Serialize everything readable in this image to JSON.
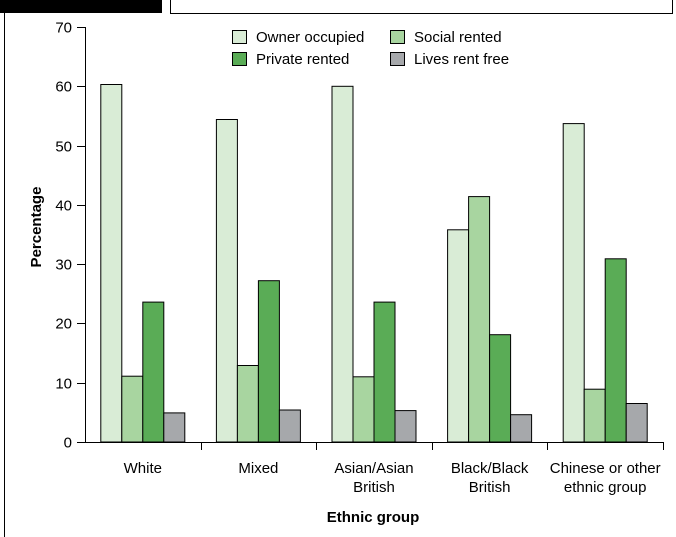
{
  "chart_data": {
    "type": "bar",
    "categories": [
      [
        "White"
      ],
      [
        "Mixed"
      ],
      [
        "Asian/Asian",
        "British"
      ],
      [
        "Black/Black",
        "British"
      ],
      [
        "Chinese or other",
        "ethnic group"
      ]
    ],
    "series": [
      {
        "name": "Owner occupied",
        "color": "#d9ecd6",
        "values": [
          60.3,
          54.4,
          60.0,
          35.8,
          53.7
        ]
      },
      {
        "name": "Social rented",
        "color": "#a8d5a0",
        "values": [
          11.1,
          12.9,
          11.0,
          41.4,
          8.9
        ]
      },
      {
        "name": "Private rented",
        "color": "#5aac56",
        "values": [
          23.6,
          27.2,
          23.6,
          18.1,
          30.9
        ]
      },
      {
        "name": "Lives rent free",
        "color": "#a6a8ab",
        "values": [
          4.9,
          5.4,
          5.3,
          4.6,
          6.5
        ]
      }
    ],
    "xlabel": "Ethnic group",
    "ylabel": "Percentage",
    "ylim": [
      0,
      70
    ],
    "yticks": [
      0,
      10,
      20,
      30,
      40,
      50,
      60,
      70
    ],
    "grid": false,
    "legend": "top-center"
  }
}
